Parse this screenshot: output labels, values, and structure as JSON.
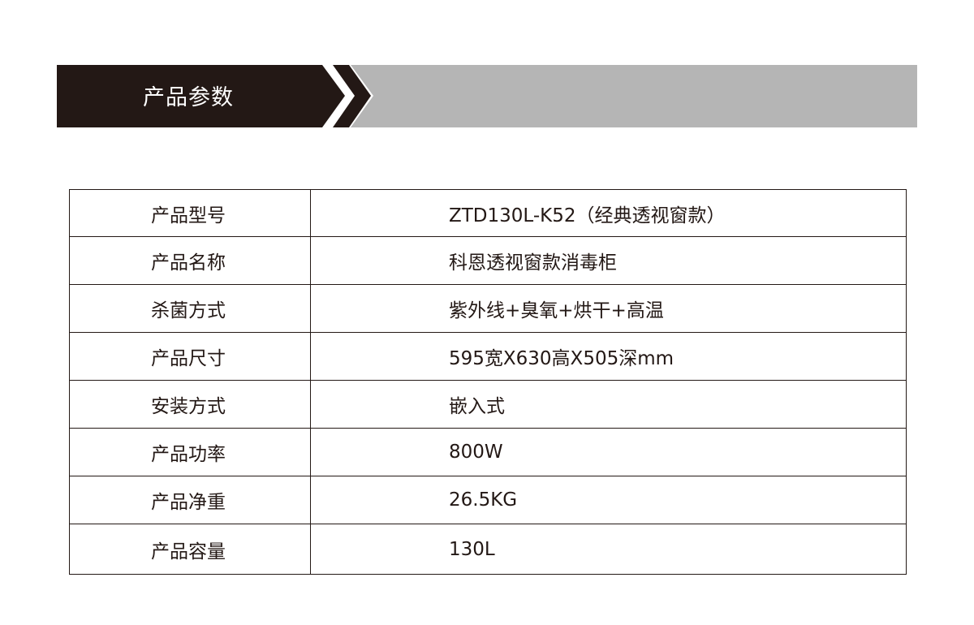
{
  "header": {
    "title": "产品参数",
    "colors": {
      "dark": "#231815",
      "gray": "#b5b5b5"
    }
  },
  "specs": [
    {
      "label": "产品型号",
      "value": "ZTD130L-K52（经典透视窗款）"
    },
    {
      "label": "产品名称",
      "value": "科恩透视窗款消毒柜"
    },
    {
      "label": "杀菌方式",
      "value": "紫外线+臭氧+烘干+高温"
    },
    {
      "label": "产品尺寸",
      "value": "595宽X630高X505深mm"
    },
    {
      "label": "安装方式",
      "value": "嵌入式"
    },
    {
      "label": "产品功率",
      "value": "800W"
    },
    {
      "label": "产品净重",
      "value": "26.5KG"
    },
    {
      "label": "产品容量",
      "value": "130L"
    }
  ]
}
